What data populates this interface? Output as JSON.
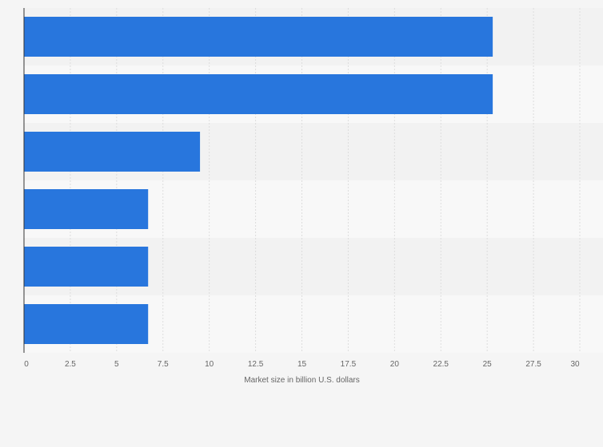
{
  "chart_data": {
    "type": "bar",
    "orientation": "horizontal",
    "categories": [
      "",
      "",
      "",
      "",
      "",
      ""
    ],
    "values": [
      25.3,
      25.3,
      9.5,
      6.7,
      6.7,
      6.7
    ],
    "title": "",
    "xlabel": "Market size in billion U.S. dollars",
    "ylabel": "",
    "xlim": [
      0,
      30
    ],
    "xticks": [
      0,
      2.5,
      5,
      7.5,
      10,
      12.5,
      15,
      17.5,
      20,
      22.5,
      25,
      27.5,
      30
    ],
    "xtick_labels": [
      "0",
      "2.5",
      "5",
      "7.5",
      "10",
      "12.5",
      "15",
      "17.5",
      "20",
      "22.5",
      "25",
      "27.5",
      "30"
    ],
    "grid": true,
    "legend": "none",
    "bar_color": "#2876dd",
    "band_colors": [
      "#f2f2f2",
      "#f8f8f8"
    ],
    "gridline_color": "#dddddd",
    "axis_color": "#333333",
    "text_color": "#666666",
    "background_color": "#f5f5f5"
  }
}
